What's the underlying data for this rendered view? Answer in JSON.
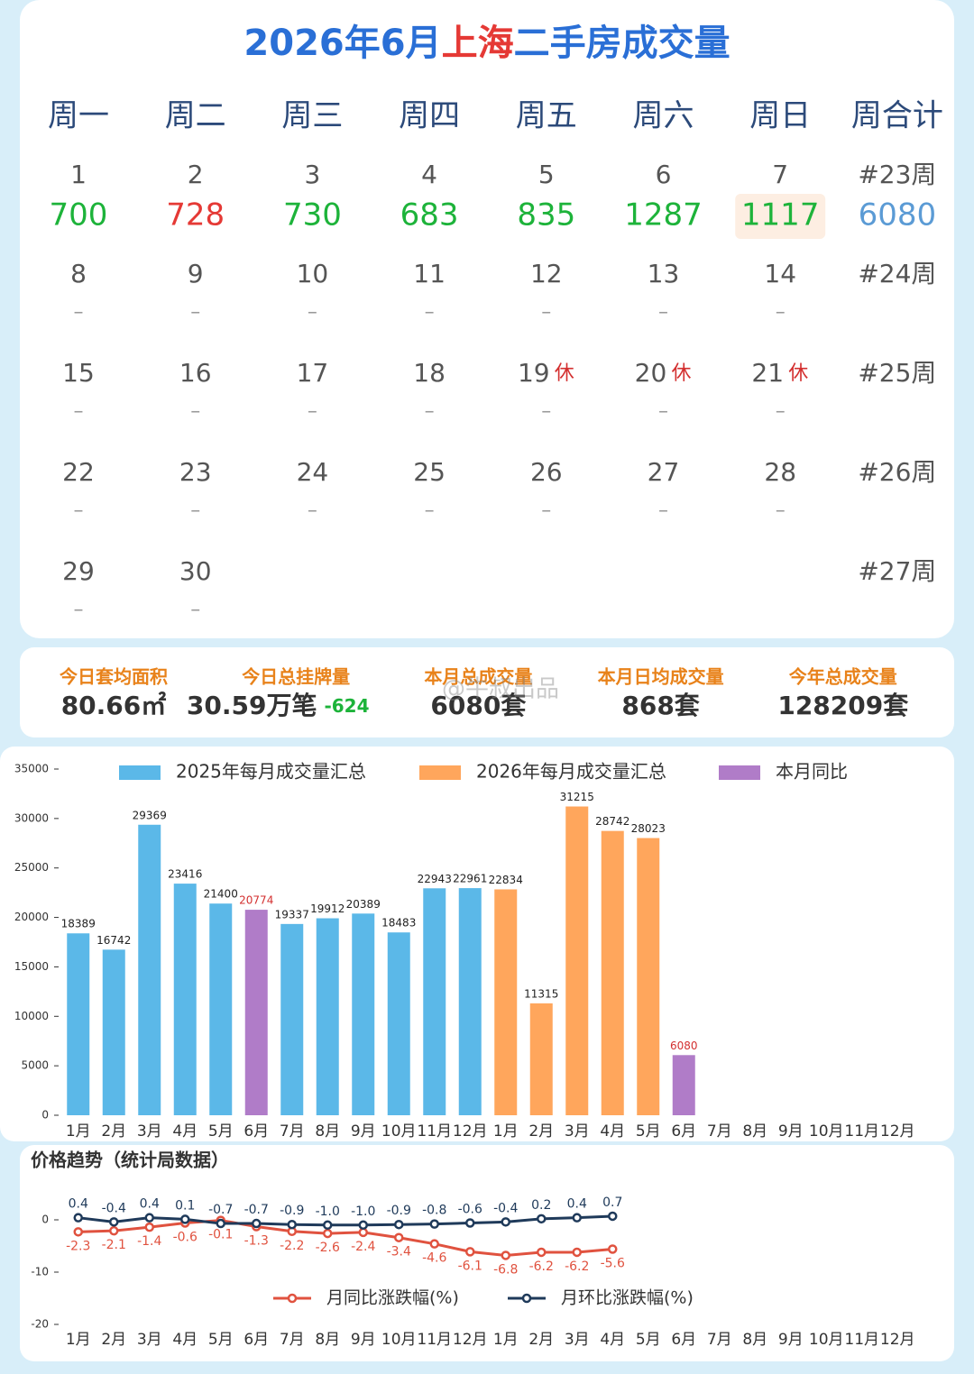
{
  "title_parts": [
    "2026年6月",
    "上海",
    "二手房成交量"
  ],
  "calendar": {
    "headers": [
      "周一",
      "周二",
      "周三",
      "周四",
      "周五",
      "周六",
      "周日",
      "周合计"
    ],
    "weeks": [
      {
        "label": "#23周",
        "total": 6080,
        "days": [
          {
            "day": 1,
            "value": 700
          },
          {
            "day": 2,
            "value": 728,
            "color": "#e53935"
          },
          {
            "day": 3,
            "value": 730
          },
          {
            "day": 4,
            "value": 683
          },
          {
            "day": 5,
            "value": 835
          },
          {
            "day": 6,
            "value": 1287
          },
          {
            "day": 7,
            "value": 1117,
            "highlight": true
          }
        ]
      },
      {
        "label": "#24周",
        "days": [
          {
            "day": 8,
            "value": "–"
          },
          {
            "day": 9,
            "value": "–"
          },
          {
            "day": 10,
            "value": "–"
          },
          {
            "day": 11,
            "value": "–"
          },
          {
            "day": 12,
            "value": "–"
          },
          {
            "day": 13,
            "value": "–"
          },
          {
            "day": 14,
            "value": "–"
          }
        ]
      },
      {
        "label": "#25周",
        "days": [
          {
            "day": 15,
            "value": "–"
          },
          {
            "day": 16,
            "value": "–"
          },
          {
            "day": 17,
            "value": "–"
          },
          {
            "day": 18,
            "value": "–"
          },
          {
            "day": 19,
            "value": "–",
            "holiday": "休"
          },
          {
            "day": 20,
            "value": "–",
            "holiday": "休"
          },
          {
            "day": 21,
            "value": "–",
            "holiday": "休"
          }
        ]
      },
      {
        "label": "#26周",
        "days": [
          {
            "day": 22,
            "value": "–"
          },
          {
            "day": 23,
            "value": "–"
          },
          {
            "day": 24,
            "value": "–"
          },
          {
            "day": 25,
            "value": "–"
          },
          {
            "day": 26,
            "value": "–"
          },
          {
            "day": 27,
            "value": "–"
          },
          {
            "day": 28,
            "value": "–"
          }
        ]
      },
      {
        "label": "#27周",
        "days": [
          {
            "day": 29,
            "value": "–"
          },
          {
            "day": 30,
            "value": "–"
          }
        ]
      }
    ]
  },
  "stats": [
    {
      "label": "今日套均面积",
      "value": "80.66㎡"
    },
    {
      "label": "今日总挂牌量",
      "value": "30.59万笔",
      "change": "-624"
    },
    {
      "label": "本月总成交量",
      "value": "6080套"
    },
    {
      "label": "本月日均成交量",
      "value": "868套"
    },
    {
      "label": "今年总成交量",
      "value": "128209套"
    }
  ],
  "watermark": "@牛叔出品",
  "chart_data": [
    {
      "type": "bar",
      "categories": [
        "1月",
        "2月",
        "3月",
        "4月",
        "5月",
        "6月",
        "7月",
        "8月",
        "9月",
        "10月",
        "11月",
        "12月",
        "1月",
        "2月",
        "3月",
        "4月",
        "5月",
        "6月",
        "7月",
        "8月",
        "9月",
        "10月",
        "11月",
        "12月"
      ],
      "series": [
        {
          "name": "2025年每月成交量汇总",
          "color": "#5bb8e8",
          "values": [
            18389,
            16742,
            29369,
            23416,
            21400,
            null,
            19337,
            19912,
            20389,
            18483,
            22943,
            22961,
            null,
            null,
            null,
            null,
            null,
            null,
            null,
            null,
            null,
            null,
            null,
            null
          ]
        },
        {
          "name": "2026年每月成交量汇总",
          "color": "#ffa65c",
          "values": [
            null,
            null,
            null,
            null,
            null,
            null,
            null,
            null,
            null,
            null,
            null,
            null,
            22834,
            11315,
            31215,
            28742,
            28023,
            null,
            null,
            null,
            null,
            null,
            null,
            null
          ]
        },
        {
          "name": "本月同比",
          "color": "#b07cc8",
          "label_color": "#d32f2f",
          "values": [
            null,
            null,
            null,
            null,
            null,
            20774,
            null,
            null,
            null,
            null,
            null,
            null,
            null,
            null,
            null,
            null,
            null,
            6080,
            null,
            null,
            null,
            null,
            null,
            null
          ]
        }
      ],
      "ylim": [
        0,
        35000
      ],
      "yticks": [
        0,
        5000,
        10000,
        15000,
        20000,
        25000,
        30000,
        35000
      ],
      "grid": false
    },
    {
      "type": "line",
      "title": "价格趋势（统计局数据）",
      "categories": [
        "1月",
        "2月",
        "3月",
        "4月",
        "5月",
        "6月",
        "7月",
        "8月",
        "9月",
        "10月",
        "11月",
        "12月",
        "1月",
        "2月",
        "3月",
        "4月",
        "5月",
        "6月",
        "7月",
        "8月",
        "9月",
        "10月",
        "11月",
        "12月"
      ],
      "series": [
        {
          "name": "月同比涨跌幅(%)",
          "color": "#e0523f",
          "label_side": "below",
          "values": [
            -2.3,
            -2.1,
            -1.4,
            -0.6,
            -0.1,
            -1.3,
            -2.2,
            -2.6,
            -2.4,
            -3.4,
            -4.6,
            -6.1,
            -6.8,
            -6.2,
            -6.2,
            -5.6,
            null,
            null,
            null,
            null,
            null,
            null,
            null,
            null
          ],
          "value_labels": [
            "-2.3",
            "-2.1",
            "-1.4",
            "-0.6",
            "-0.1",
            "-1.3",
            "-2.2",
            "-2.6",
            "-2.4",
            "-3.4",
            "-4.6",
            "-6.1",
            "-6.8",
            "-6.2",
            "-6.2",
            "-5.6",
            null,
            null,
            null,
            null,
            null,
            null,
            null,
            null
          ]
        },
        {
          "name": "月环比涨跌幅(%)",
          "color": "#1f3a5a",
          "label_side": "above",
          "values": [
            0.4,
            -0.4,
            0.4,
            0.1,
            -0.7,
            -0.7,
            -0.9,
            -1.0,
            -1.0,
            -0.9,
            -0.8,
            -0.6,
            -0.4,
            0.2,
            0.4,
            0.7,
            null,
            null,
            null,
            null,
            null,
            null,
            null,
            null
          ],
          "value_labels": [
            "0.4",
            "-0.4",
            "0.4",
            "0.1",
            "-0.7",
            "-0.7",
            "-0.9",
            "-1.0",
            "-1.0",
            "-0.9",
            "-0.8",
            "-0.6",
            "-0.4",
            "0.2",
            "0.4",
            "0.7",
            null,
            null,
            null,
            null,
            null,
            null,
            null,
            null
          ]
        }
      ],
      "ylim": [
        -20,
        3
      ],
      "yticks": [
        -20,
        -10,
        0
      ],
      "grid": false
    }
  ]
}
